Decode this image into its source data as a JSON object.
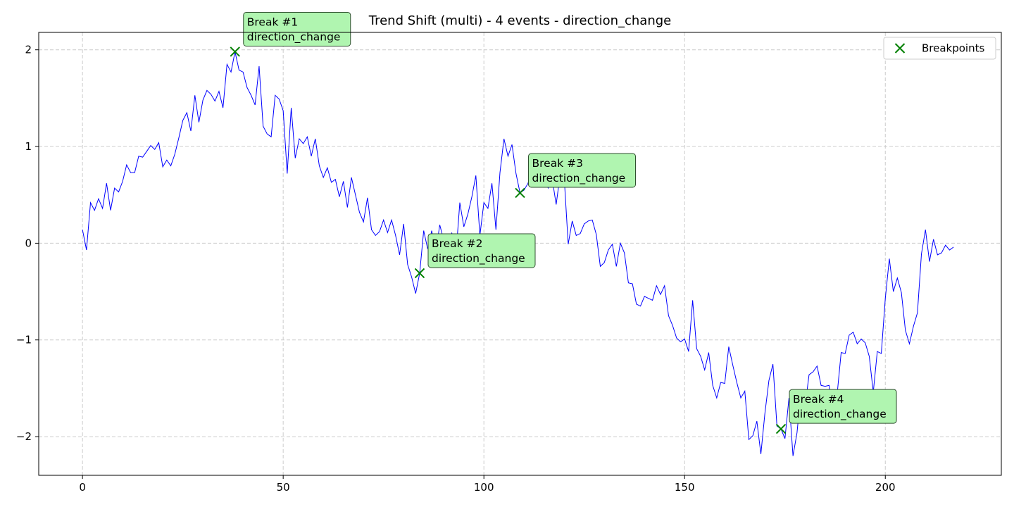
{
  "chart_data": {
    "type": "line",
    "title": "Trend Shift (multi) - 4 events - direction_change",
    "xlabel": "",
    "ylabel": "",
    "xlim": [
      -10.9,
      228.9
    ],
    "ylim": [
      -2.4,
      2.18
    ],
    "xticks": [
      0,
      50,
      100,
      150,
      200
    ],
    "yticks": [
      -2,
      -1,
      0,
      1,
      2
    ],
    "grid": true,
    "legend": {
      "position": "top-right",
      "entries": [
        "Breakpoints"
      ]
    },
    "colors": {
      "series": "#0000ff",
      "breakpoint": "#008000",
      "annotation_bg": "#b0f5b0",
      "grid": "#cccccc"
    },
    "series": [
      {
        "values": [
          0.14,
          -0.07,
          0.42,
          0.34,
          0.46,
          0.36,
          0.62,
          0.34,
          0.57,
          0.53,
          0.64,
          0.81,
          0.73,
          0.73,
          0.9,
          0.89,
          0.95,
          1.01,
          0.97,
          1.04,
          0.79,
          0.86,
          0.8,
          0.92,
          1.09,
          1.27,
          1.35,
          1.16,
          1.53,
          1.25,
          1.48,
          1.58,
          1.54,
          1.47,
          1.57,
          1.4,
          1.85,
          1.77,
          1.98,
          1.79,
          1.77,
          1.61,
          1.53,
          1.43,
          1.83,
          1.21,
          1.13,
          1.1,
          1.53,
          1.49,
          1.37,
          0.72,
          1.4,
          0.88,
          1.08,
          1.03,
          1.1,
          0.9,
          1.08,
          0.8,
          0.68,
          0.78,
          0.63,
          0.66,
          0.48,
          0.64,
          0.37,
          0.68,
          0.5,
          0.32,
          0.22,
          0.47,
          0.14,
          0.08,
          0.12,
          0.24,
          0.11,
          0.24,
          0.08,
          -0.12,
          0.2,
          -0.22,
          -0.35,
          -0.52,
          -0.31,
          0.13,
          -0.06,
          0.13,
          -0.1,
          0.19,
          0.03,
          -0.16,
          0.11,
          -0.14,
          0.42,
          0.17,
          0.3,
          0.48,
          0.7,
          0.08,
          0.42,
          0.36,
          0.62,
          0.14,
          0.73,
          1.08,
          0.9,
          1.02,
          0.72,
          0.52,
          0.55,
          0.62,
          0.79,
          0.6,
          0.84,
          0.73,
          0.57,
          0.67,
          0.4,
          0.71,
          0.68,
          -0.01,
          0.23,
          0.08,
          0.1,
          0.2,
          0.23,
          0.24,
          0.09,
          -0.24,
          -0.2,
          -0.07,
          -0.01,
          -0.24,
          0.0,
          -0.1,
          -0.41,
          -0.42,
          -0.63,
          -0.65,
          -0.55,
          -0.57,
          -0.59,
          -0.44,
          -0.53,
          -0.44,
          -0.75,
          -0.85,
          -0.98,
          -1.02,
          -0.99,
          -1.12,
          -0.59,
          -1.09,
          -1.17,
          -1.31,
          -1.13,
          -1.47,
          -1.6,
          -1.44,
          -1.45,
          -1.07,
          -1.26,
          -1.44,
          -1.6,
          -1.53,
          -2.03,
          -1.99,
          -1.84,
          -2.18,
          -1.76,
          -1.42,
          -1.25,
          -1.89,
          -1.92,
          -2.02,
          -1.6,
          -2.2,
          -1.96,
          -1.53,
          -1.69,
          -1.36,
          -1.33,
          -1.27,
          -1.47,
          -1.48,
          -1.47,
          -1.83,
          -1.56,
          -1.13,
          -1.14,
          -0.95,
          -0.92,
          -1.04,
          -0.99,
          -1.03,
          -1.17,
          -1.54,
          -1.12,
          -1.14,
          -0.57,
          -0.16,
          -0.5,
          -0.36,
          -0.51,
          -0.9,
          -1.04,
          -0.86,
          -0.72,
          -0.11,
          0.14,
          -0.19,
          0.04,
          -0.12,
          -0.1,
          -0.02,
          -0.07,
          -0.04
        ]
      }
    ],
    "breakpoints": [
      {
        "x": 38,
        "y": 1.98,
        "label_line1": "Break #1",
        "label_line2": "direction_change"
      },
      {
        "x": 84,
        "y": -0.31,
        "label_line1": "Break #2",
        "label_line2": "direction_change"
      },
      {
        "x": 109,
        "y": 0.52,
        "label_line1": "Break #3",
        "label_line2": "direction_change"
      },
      {
        "x": 174,
        "y": -1.92,
        "label_line1": "Break #4",
        "label_line2": "direction_change"
      }
    ]
  }
}
